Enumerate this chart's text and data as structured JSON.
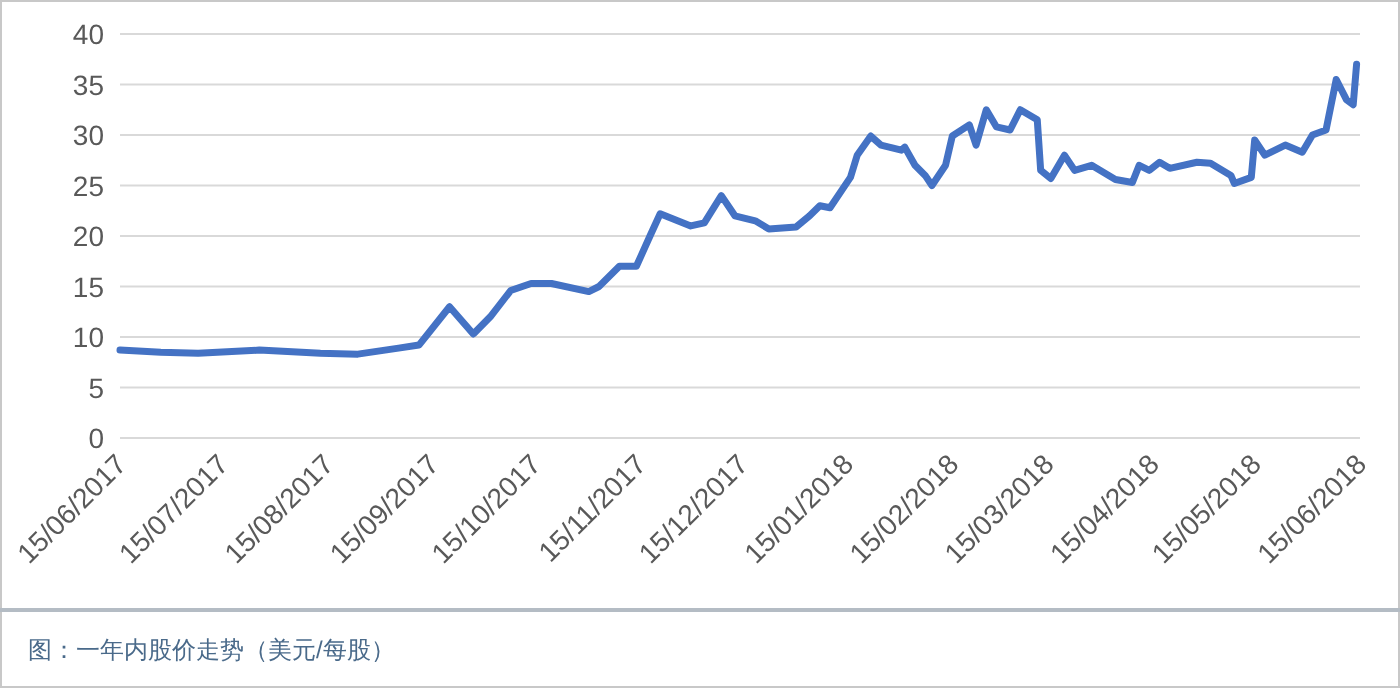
{
  "chart_data": {
    "type": "line",
    "x": [
      "2017-06-15",
      "2017-06-27",
      "2017-07-08",
      "2017-07-26",
      "2017-08-13",
      "2017-08-24",
      "2017-09-05",
      "2017-09-11",
      "2017-09-20",
      "2017-09-27",
      "2017-10-02",
      "2017-10-08",
      "2017-10-14",
      "2017-10-20",
      "2017-10-31",
      "2017-11-03",
      "2017-11-09",
      "2017-11-14",
      "2017-11-18",
      "2017-11-21",
      "2017-11-30",
      "2017-12-04",
      "2017-12-09",
      "2017-12-13",
      "2017-12-19",
      "2017-12-23",
      "2017-12-31",
      "2018-01-04",
      "2018-01-07",
      "2018-01-10",
      "2018-01-16",
      "2018-01-18",
      "2018-01-22",
      "2018-01-25",
      "2018-01-31",
      "2018-02-01",
      "2018-02-04",
      "2018-02-07",
      "2018-02-09",
      "2018-02-13",
      "2018-02-15",
      "2018-02-20",
      "2018-02-22",
      "2018-02-25",
      "2018-02-28",
      "2018-03-04",
      "2018-03-07",
      "2018-03-12",
      "2018-03-13",
      "2018-03-16",
      "2018-03-20",
      "2018-03-23",
      "2018-03-28",
      "2018-04-04",
      "2018-04-09",
      "2018-04-11",
      "2018-04-14",
      "2018-04-17",
      "2018-04-20",
      "2018-04-28",
      "2018-05-02",
      "2018-05-08",
      "2018-05-09",
      "2018-05-14",
      "2018-05-15",
      "2018-05-18",
      "2018-05-24",
      "2018-05-29",
      "2018-06-01",
      "2018-06-05",
      "2018-06-08",
      "2018-06-11",
      "2018-06-13",
      "2018-06-14"
    ],
    "series": [
      {
        "color": "#4472c4",
        "values": [
          8.7,
          8.5,
          8.4,
          8.7,
          8.4,
          8.3,
          8.9,
          9.2,
          13.0,
          10.3,
          12.0,
          14.6,
          15.3,
          15.3,
          14.5,
          15.0,
          17.0,
          17.0,
          20.0,
          22.2,
          21.0,
          21.3,
          24.0,
          22.0,
          21.5,
          20.7,
          20.9,
          22.0,
          23.0,
          22.8,
          25.8,
          28.0,
          29.9,
          29.0,
          28.5,
          28.8,
          27.0,
          26.0,
          25.0,
          27.0,
          29.9,
          31.0,
          29.0,
          32.5,
          30.8,
          30.5,
          32.5,
          31.5,
          26.5,
          25.7,
          28.0,
          26.5,
          27.0,
          25.6,
          25.3,
          27.0,
          26.5,
          27.3,
          26.7,
          27.3,
          27.2,
          26.0,
          25.2,
          25.8,
          29.5,
          28.0,
          29.0,
          28.3,
          30.0,
          30.5,
          35.5,
          33.5,
          33.0,
          37.0
        ]
      }
    ],
    "xlim": [
      "2017-06-15",
      "2018-06-15"
    ],
    "xticks": [
      {
        "value": "2017-06-15",
        "label": "15/06/2017"
      },
      {
        "value": "2017-07-15",
        "label": "15/07/2017"
      },
      {
        "value": "2017-08-15",
        "label": "15/08/2017"
      },
      {
        "value": "2017-09-15",
        "label": "15/09/2017"
      },
      {
        "value": "2017-10-15",
        "label": "15/10/2017"
      },
      {
        "value": "2017-11-15",
        "label": "15/11/2017"
      },
      {
        "value": "2017-12-15",
        "label": "15/12/2017"
      },
      {
        "value": "2018-01-15",
        "label": "15/01/2018"
      },
      {
        "value": "2018-02-15",
        "label": "15/02/2018"
      },
      {
        "value": "2018-03-15",
        "label": "15/03/2018"
      },
      {
        "value": "2018-04-15",
        "label": "15/04/2018"
      },
      {
        "value": "2018-05-15",
        "label": "15/05/2018"
      },
      {
        "value": "2018-06-15",
        "label": "15/06/2018"
      }
    ],
    "ylim": [
      0,
      40
    ],
    "yticks": [
      0,
      5,
      10,
      15,
      20,
      25,
      30,
      35,
      40
    ],
    "grid": "y",
    "annotations": [
      "图：一年内股价走势（美元/每股）"
    ]
  }
}
